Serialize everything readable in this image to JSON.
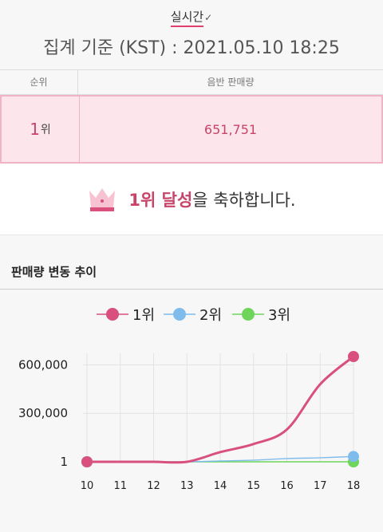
{
  "header": {
    "tab_label": "실시간",
    "basis_label": "집계 기준 (KST) : 2021.05.10 18:25"
  },
  "table": {
    "col_rank": "순위",
    "col_sales": "음반 판매량",
    "row": {
      "rank_num": "1",
      "rank_unit": "위",
      "sales": "651,751"
    }
  },
  "congrats": {
    "icon": "crown-icon",
    "highlight": "1위 달성",
    "rest": "을 축하합니다."
  },
  "trend": {
    "title": "판매량 변동 추이"
  },
  "chart_data": {
    "type": "line",
    "x": [
      10,
      11,
      12,
      13,
      14,
      15,
      16,
      17,
      18
    ],
    "series": [
      {
        "name": "1위",
        "color": "#d9507f",
        "values": [
          1,
          1,
          1,
          1,
          60000,
          110000,
          200000,
          480000,
          651751
        ]
      },
      {
        "name": "2위",
        "color": "#7fbcec",
        "values": [
          1,
          1,
          1,
          1,
          5000,
          10000,
          20000,
          25000,
          33000
        ]
      },
      {
        "name": "3위",
        "color": "#6dd65a",
        "values": [
          1,
          1,
          1,
          1,
          1,
          1,
          1,
          1,
          1
        ]
      }
    ],
    "y_ticks": [
      {
        "value": 1,
        "label": "1"
      },
      {
        "value": 300000,
        "label": "300,000"
      },
      {
        "value": 600000,
        "label": "600,000"
      }
    ],
    "ylim": [
      1,
      651751
    ],
    "grid": true,
    "legend": "top"
  }
}
